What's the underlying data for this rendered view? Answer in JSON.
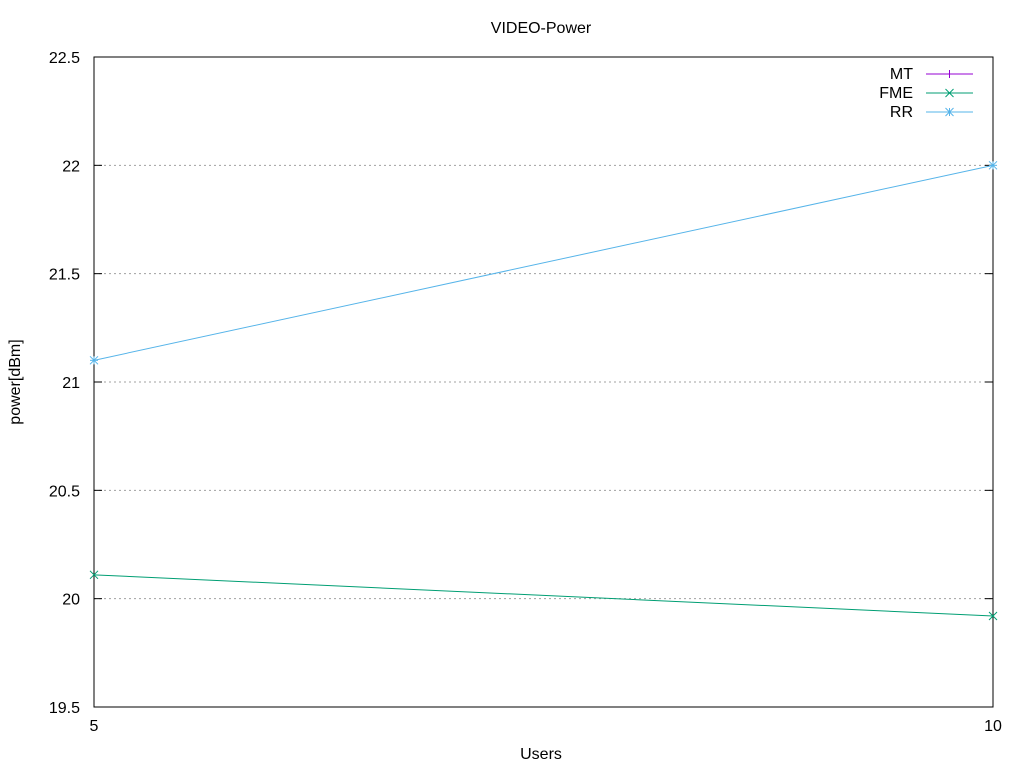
{
  "chart_data": {
    "type": "line",
    "title": "VIDEO-Power",
    "xlabel": "Users",
    "ylabel": "power[dBm]",
    "x": [
      5,
      10
    ],
    "xlim": [
      5,
      10
    ],
    "ylim": [
      19.5,
      22.5
    ],
    "xticks": [
      5,
      10
    ],
    "xtick_labels": [
      "5",
      "10"
    ],
    "yticks": [
      19.5,
      20,
      20.5,
      21,
      21.5,
      22,
      22.5
    ],
    "ytick_labels": [
      "19.5",
      "20",
      "20.5",
      "21",
      "21.5",
      "22",
      "22.5"
    ],
    "grid": "horizontal dotted",
    "legend_position": "top-right",
    "series": [
      {
        "name": "MT",
        "values": [
          null,
          null
        ],
        "color": "#9400d3",
        "marker": "plus"
      },
      {
        "name": "FME",
        "values": [
          20.11,
          19.92
        ],
        "color": "#009e73",
        "marker": "cross"
      },
      {
        "name": "RR",
        "values": [
          21.1,
          22.0
        ],
        "color": "#56b4e9",
        "marker": "star"
      }
    ]
  }
}
